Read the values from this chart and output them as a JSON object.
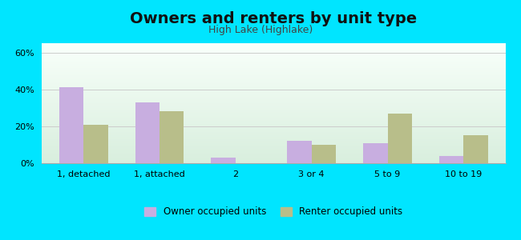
{
  "title": "Owners and renters by unit type",
  "subtitle": "High Lake (Highlake)",
  "categories": [
    "1, detached",
    "1, attached",
    "2",
    "3 or 4",
    "5 to 9",
    "10 to 19"
  ],
  "owner_values": [
    41,
    33,
    3,
    12,
    11,
    4
  ],
  "renter_values": [
    21,
    28,
    0,
    10,
    27,
    15
  ],
  "owner_color": "#c8aee0",
  "renter_color": "#b8be8a",
  "ylim": [
    0,
    65
  ],
  "yticks": [
    0,
    20,
    40,
    60
  ],
  "ytick_labels": [
    "0%",
    "20%",
    "40%",
    "60%"
  ],
  "background_outer": "#00e5ff",
  "background_inner_top": "#f8fffa",
  "background_inner_bottom": "#d8eedd",
  "title_fontsize": 14,
  "subtitle_fontsize": 9,
  "legend_label_owner": "Owner occupied units",
  "legend_label_renter": "Renter occupied units",
  "bar_width": 0.32
}
